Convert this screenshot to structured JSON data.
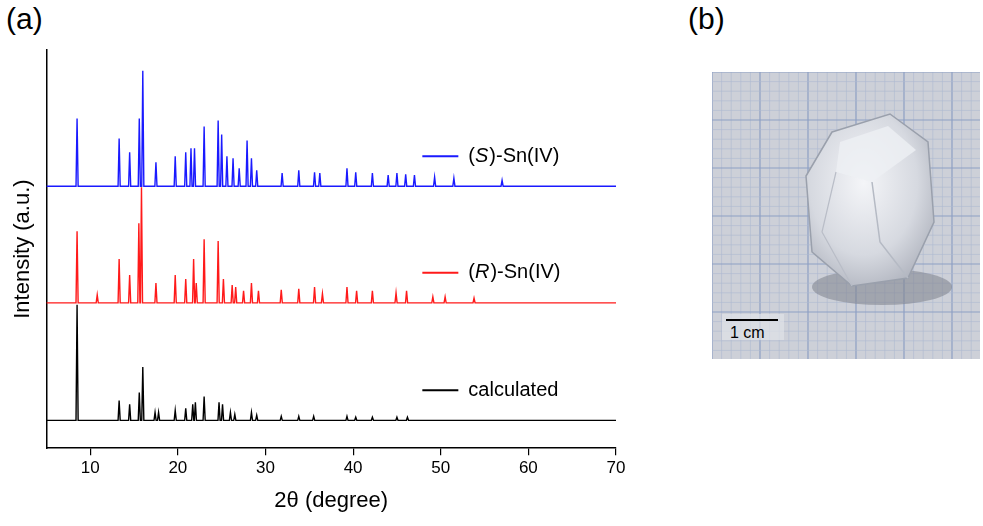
{
  "panel_labels": [
    "(a)",
    "(b)"
  ],
  "photo": {
    "scale_bar_label": "1 cm"
  },
  "chart_data": {
    "type": "line",
    "x_label": "2θ (degree)",
    "y_label": "Intensity (a.u.)",
    "xlim": [
      5,
      70
    ],
    "xticks": [
      10,
      20,
      30,
      40,
      50,
      60,
      70
    ],
    "ylim": [
      0,
      100
    ],
    "tick_labels": "x",
    "grid": false,
    "series": [
      {
        "name": "(S)-Sn(IV)",
        "color": "#1a1aff",
        "x": [
          5,
          8.38,
          8.5,
          8.62,
          13.18,
          13.3,
          13.42,
          14.38,
          14.5,
          14.62,
          15.48,
          15.6,
          15.72,
          15.88,
          16.0,
          16.12,
          17.38,
          17.5,
          17.62,
          19.58,
          19.7,
          19.82,
          20.78,
          20.9,
          21.02,
          21.38,
          21.5,
          21.62,
          21.78,
          21.9,
          22.02,
          22.88,
          23.0,
          23.12,
          24.48,
          24.6,
          24.72,
          24.88,
          25.0,
          25.12,
          25.48,
          25.6,
          25.72,
          26.18,
          26.3,
          26.42,
          26.88,
          27.0,
          27.12,
          27.78,
          27.9,
          28.02,
          28.28,
          28.4,
          28.52,
          28.88,
          29.0,
          29.12,
          31.78,
          31.9,
          32.02,
          33.68,
          33.8,
          33.92,
          35.48,
          35.6,
          35.72,
          36.08,
          36.2,
          36.32,
          39.18,
          39.3,
          39.42,
          40.18,
          40.3,
          40.42,
          42.08,
          42.2,
          42.32,
          43.88,
          44.0,
          44.12,
          44.88,
          45.0,
          45.12,
          45.88,
          46.0,
          46.12,
          46.88,
          47.0,
          47.12,
          49.18,
          49.3,
          49.42,
          51.38,
          51.5,
          51.62,
          56.88,
          57.0,
          57.12,
          70
        ],
        "values": [
          65.8,
          65.8,
          82.8,
          65.8,
          65.8,
          77.8,
          65.8,
          65.8,
          74.3,
          65.8,
          65.8,
          82.8,
          65.8,
          65.8,
          94.8,
          65.8,
          65.8,
          71.8,
          65.8,
          65.8,
          73.3,
          65.8,
          65.8,
          74.3,
          65.8,
          65.8,
          75.3,
          65.8,
          65.8,
          75.3,
          65.8,
          65.8,
          80.8,
          65.8,
          65.8,
          82.3,
          65.8,
          65.8,
          78.8,
          65.8,
          65.8,
          73.3,
          65.8,
          65.8,
          72.8,
          65.8,
          65.8,
          70.3,
          65.8,
          65.8,
          77.3,
          65.8,
          65.8,
          72.8,
          65.8,
          65.8,
          69.8,
          65.8,
          65.8,
          69.1,
          65.8,
          65.8,
          69.8,
          65.8,
          65.8,
          69.3,
          65.8,
          65.8,
          69.1,
          65.8,
          65.8,
          70.3,
          65.8,
          65.8,
          69.3,
          65.8,
          65.8,
          69.1,
          65.8,
          65.8,
          68.6,
          65.8,
          65.8,
          69.1,
          65.8,
          65.8,
          68.8,
          65.8,
          65.8,
          68.6,
          65.8,
          65.8,
          68.1,
          65.8,
          65.8,
          67.8,
          65.8,
          65.8,
          67.3,
          65.8,
          65.8
        ]
      },
      {
        "name": "(R)-Sn(IV)",
        "color": "#ff1a1a",
        "x": [
          5,
          8.38,
          8.5,
          8.62,
          10.68,
          10.8,
          10.92,
          13.18,
          13.3,
          13.42,
          14.38,
          14.5,
          14.62,
          15.43,
          15.55,
          15.67,
          15.73,
          15.85,
          15.97,
          17.38,
          17.5,
          17.62,
          19.58,
          19.7,
          19.82,
          20.78,
          20.9,
          21.02,
          21.68,
          21.8,
          21.92,
          21.98,
          22.1,
          22.22,
          22.88,
          23.0,
          23.12,
          24.48,
          24.6,
          24.72,
          25.08,
          25.2,
          25.32,
          26.08,
          26.2,
          26.32,
          26.48,
          26.6,
          26.72,
          27.38,
          27.5,
          27.62,
          28.28,
          28.4,
          28.52,
          29.08,
          29.2,
          29.32,
          31.68,
          31.8,
          31.92,
          33.68,
          33.8,
          33.92,
          35.48,
          35.6,
          35.72,
          36.38,
          36.5,
          36.62,
          39.18,
          39.3,
          39.42,
          40.28,
          40.4,
          40.52,
          42.08,
          42.2,
          42.32,
          44.78,
          44.9,
          45.02,
          45.98,
          46.1,
          46.22,
          48.98,
          49.1,
          49.22,
          50.38,
          50.5,
          50.62,
          53.68,
          53.8,
          53.92,
          70
        ],
        "values": [
          36.5,
          36.5,
          54.5,
          36.5,
          36.5,
          38.5,
          36.5,
          36.5,
          47.5,
          36.5,
          36.5,
          43.5,
          36.5,
          36.5,
          56.5,
          36.5,
          36.5,
          65.5,
          36.5,
          36.5,
          41.5,
          36.5,
          36.5,
          43.5,
          36.5,
          36.5,
          42.5,
          36.5,
          36.5,
          47.5,
          36.5,
          36.5,
          41.5,
          36.5,
          36.5,
          52.5,
          36.5,
          36.5,
          52,
          36.5,
          36.5,
          42.5,
          36.5,
          36.5,
          41,
          36.5,
          36.5,
          40.5,
          36.5,
          36.5,
          39.5,
          36.5,
          36.5,
          41.5,
          36.5,
          36.5,
          39.5,
          36.5,
          36.5,
          39.8,
          36.5,
          36.5,
          40,
          36.5,
          36.5,
          40.5,
          36.5,
          36.5,
          38.8,
          36.5,
          36.5,
          40.5,
          36.5,
          36.5,
          39.5,
          36.5,
          36.5,
          39.5,
          36.5,
          36.5,
          39,
          36.5,
          36.5,
          39.5,
          36.5,
          36.5,
          38,
          36.5,
          36.5,
          38,
          36.5,
          36.5,
          37.7,
          36.5,
          36.5
        ]
      },
      {
        "name": "calculated",
        "color": "#000000",
        "x": [
          5,
          8.38,
          8.5,
          8.62,
          13.18,
          13.3,
          13.42,
          14.38,
          14.5,
          14.62,
          15.48,
          15.6,
          15.72,
          15.88,
          16.0,
          16.12,
          17.28,
          17.4,
          17.52,
          17.68,
          17.8,
          17.92,
          19.58,
          19.7,
          19.82,
          20.78,
          20.9,
          21.02,
          21.58,
          21.7,
          21.82,
          21.88,
          22.0,
          22.12,
          22.88,
          23.0,
          23.12,
          24.58,
          24.7,
          24.82,
          24.98,
          25.1,
          25.22,
          25.88,
          26.0,
          26.12,
          26.38,
          26.5,
          26.62,
          28.28,
          28.4,
          28.52,
          28.88,
          29.0,
          29.12,
          31.68,
          31.8,
          31.92,
          33.68,
          33.8,
          33.92,
          35.38,
          35.5,
          35.62,
          39.18,
          39.3,
          39.42,
          40.18,
          40.3,
          40.42,
          42.08,
          42.2,
          42.32,
          44.88,
          45.0,
          45.12,
          46.08,
          46.2,
          46.32,
          70
        ],
        "values": [
          7,
          7,
          36,
          7,
          7,
          12,
          7,
          7,
          11,
          7,
          7,
          14,
          7,
          7,
          20.4,
          7,
          7,
          9,
          7,
          7,
          9,
          7,
          7,
          9.5,
          7,
          7,
          10,
          7,
          7,
          11,
          7,
          7,
          11.5,
          7,
          7,
          13,
          7,
          7,
          11.5,
          7,
          7,
          11,
          7,
          7,
          9,
          7,
          7,
          8.5,
          7,
          7,
          9,
          7,
          7,
          8.3,
          7,
          7,
          8,
          7,
          7,
          8,
          7,
          7,
          8,
          7,
          7,
          8,
          7,
          7,
          7.8,
          7,
          7,
          7.8,
          7,
          7,
          7.8,
          7,
          7,
          7.8,
          7,
          7
        ]
      }
    ]
  }
}
